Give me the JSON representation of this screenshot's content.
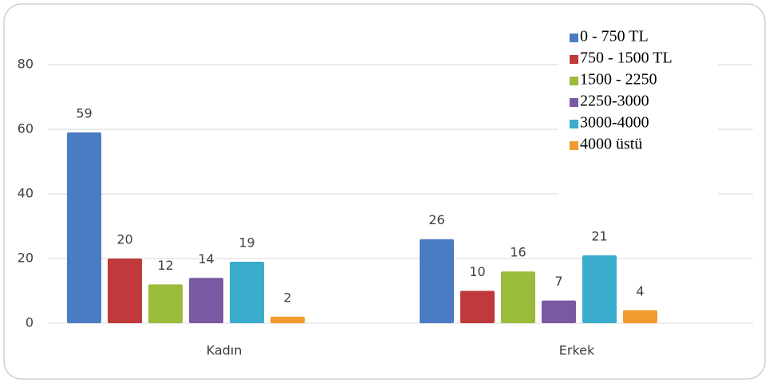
{
  "chart_data": {
    "type": "bar",
    "categories": [
      "Kadın",
      "Erkek"
    ],
    "series": [
      {
        "name": "0 - 750 TL",
        "color": "#4a7cc4",
        "values": [
          59,
          26
        ]
      },
      {
        "name": "750 - 1500 TL",
        "color": "#c0393b",
        "values": [
          20,
          10
        ]
      },
      {
        "name": "1500 - 2250",
        "color": "#9bbb3b",
        "values": [
          12,
          16
        ]
      },
      {
        "name": "2250-3000",
        "color": "#7a59a3",
        "values": [
          14,
          7
        ]
      },
      {
        "name": "3000-4000",
        "color": "#3aaccc",
        "values": [
          19,
          21
        ]
      },
      {
        "name": "4000 üstü",
        "color": "#f29a2e",
        "values": [
          2,
          4
        ]
      }
    ],
    "ylim": [
      0,
      80
    ],
    "yticks": [
      0,
      20,
      40,
      60,
      80
    ],
    "grid": true,
    "legend": "top-right"
  }
}
